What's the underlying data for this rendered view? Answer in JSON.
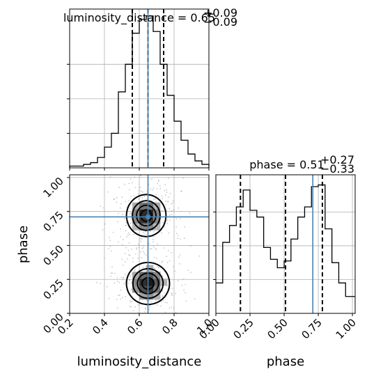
{
  "chart_data": {
    "type": "corner",
    "panels": {
      "hist_luminosity_distance": {
        "type": "histogram",
        "title": "luminosity_distance = 0.65",
        "title_sup": "+0.09",
        "title_sub": "−0.09",
        "xlim": [
          0.2,
          1.0
        ],
        "bin_edges": [
          0.2,
          0.24,
          0.28,
          0.32,
          0.36,
          0.4,
          0.44,
          0.48,
          0.52,
          0.56,
          0.6,
          0.64,
          0.68,
          0.72,
          0.76,
          0.8,
          0.84,
          0.88,
          0.92,
          0.96,
          1.0
        ],
        "counts": [
          1,
          1,
          2,
          3,
          6,
          12,
          20,
          44,
          60,
          78,
          86,
          88,
          79,
          60,
          42,
          27,
          16,
          8,
          4,
          2
        ],
        "quantiles": [
          0.56,
          0.65,
          0.74
        ],
        "truth": 0.65,
        "ymax": 92,
        "ytick_values": [
          20,
          40,
          60
        ]
      },
      "scatter_phase_vs_luminosity_distance": {
        "type": "2d-density",
        "xlabel": "luminosity_distance",
        "ylabel": "phase",
        "xlim": [
          0.2,
          1.0
        ],
        "ylim": [
          0.0,
          1.02
        ],
        "x_ticks": [
          0.2,
          0.4,
          0.6,
          0.8,
          1.0
        ],
        "x_tick_labels": [
          "0.2",
          "0.4",
          "0.6",
          "0.8",
          "1.0"
        ],
        "y_ticks": [
          0.0,
          0.25,
          0.5,
          0.75,
          1.0
        ],
        "y_tick_labels": [
          "0.00",
          "0.25",
          "0.50",
          "0.75",
          "1.00"
        ],
        "truth": [
          0.65,
          0.71
        ],
        "modes": [
          {
            "x": 0.64,
            "y": 0.72,
            "sx": 0.055,
            "sy": 0.075
          },
          {
            "x": 0.65,
            "y": 0.22,
            "sx": 0.06,
            "sy": 0.075
          }
        ],
        "contour_levels": [
          0.85,
          0.6,
          0.35,
          0.12
        ],
        "grid": true
      },
      "hist_phase": {
        "type": "histogram",
        "title": "phase = 0.51",
        "title_sup": "+0.27",
        "title_sub": "−0.33",
        "xlabel": "phase",
        "xlim": [
          0.0,
          1.02
        ],
        "x_ticks": [
          0.0,
          0.25,
          0.5,
          0.75,
          1.0
        ],
        "x_tick_labels": [
          "0.00",
          "0.25",
          "0.50",
          "0.75",
          "1.00"
        ],
        "bin_edges": [
          0.0,
          0.05,
          0.1,
          0.15,
          0.2,
          0.25,
          0.3,
          0.35,
          0.4,
          0.45,
          0.5,
          0.55,
          0.6,
          0.65,
          0.7,
          0.75,
          0.8,
          0.85,
          0.9,
          0.95,
          1.0,
          1.02
        ],
        "counts": [
          18,
          42,
          52,
          63,
          73,
          61,
          57,
          39,
          32,
          27,
          31,
          44,
          57,
          63,
          75,
          76,
          50,
          30,
          18,
          10,
          10
        ],
        "quantiles": [
          0.18,
          0.51,
          0.78
        ],
        "truth": 0.71,
        "ymax": 82,
        "ytick_values": [
          20,
          40,
          60
        ]
      }
    },
    "grid": true
  }
}
